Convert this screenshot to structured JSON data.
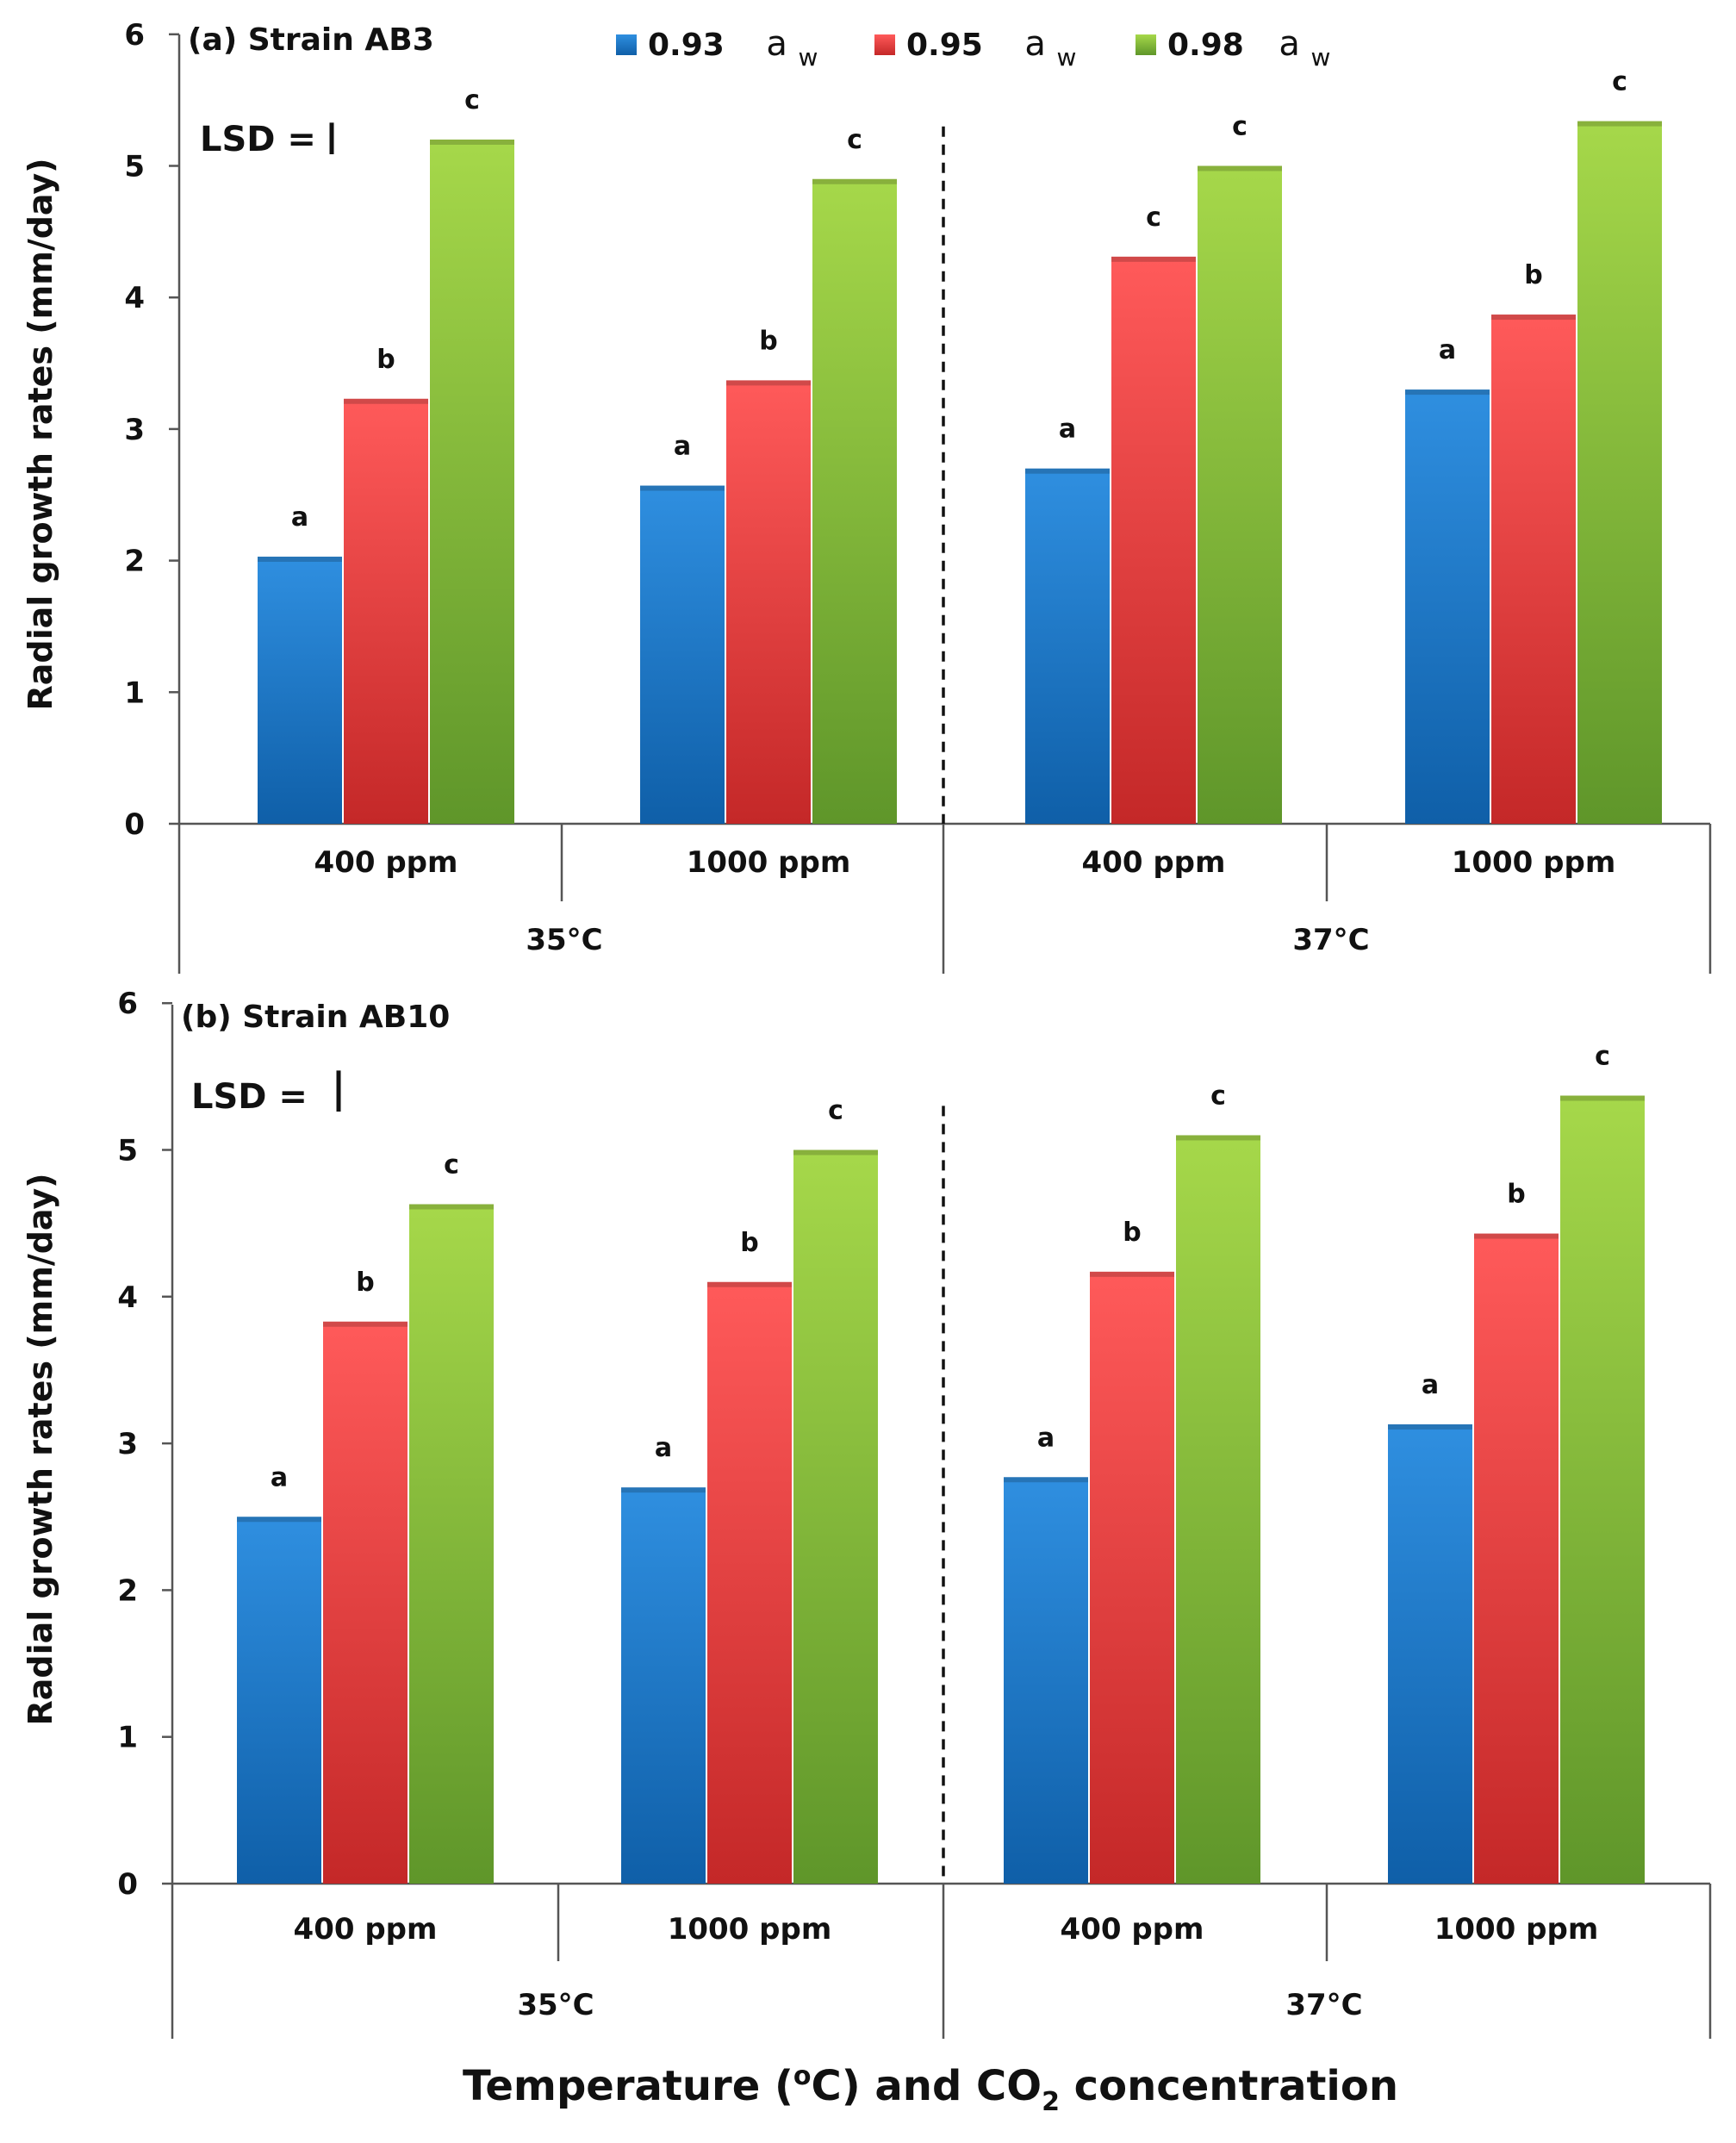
{
  "colors": {
    "series_0": [
      "#2f8fe0",
      "#0f5fa8"
    ],
    "series_1": [
      "#ff5a5a",
      "#c42828"
    ],
    "series_2": [
      "#a6d84a",
      "#5f962a"
    ],
    "axis": "#555555",
    "text": "#111111"
  },
  "legend": {
    "items": [
      {
        "value": "0.93",
        "symbol": "a",
        "subscript": "w"
      },
      {
        "value": "0.95",
        "symbol": "a",
        "subscript": "w"
      },
      {
        "value": "0.98",
        "symbol": "a",
        "subscript": "w"
      }
    ]
  },
  "xlabel": {
    "part1": "Temperature (",
    "sup": "o",
    "part2": "C) and CO",
    "sub": "2",
    "part3": " concentration"
  },
  "chart_data": [
    {
      "type": "bar",
      "title": "(a) Strain AB3",
      "lsd_label": "LSD =",
      "lsd_value_length": 0.24,
      "ylabel": "Radial growth rates (mm/day)",
      "ylim": [
        0,
        6
      ],
      "yticks": [
        "0",
        "1",
        "2",
        "3",
        "4",
        "5",
        "6"
      ],
      "categories": [
        "400 ppm",
        "1000 ppm",
        "400 ppm",
        "1000 ppm"
      ],
      "groups": [
        "35°C",
        "37°C"
      ],
      "series": [
        {
          "name": "0.93 aw",
          "values": [
            2.03,
            2.57,
            2.7,
            3.3
          ],
          "letters": [
            "a",
            "a",
            "a",
            "a"
          ]
        },
        {
          "name": "0.95 aw",
          "values": [
            3.23,
            3.37,
            4.31,
            3.87
          ],
          "letters": [
            "b",
            "b",
            "c",
            "b"
          ]
        },
        {
          "name": "0.98 aw",
          "values": [
            5.2,
            4.9,
            5.0,
            5.34
          ],
          "letters": [
            "c",
            "c",
            "c",
            "c"
          ]
        }
      ]
    },
    {
      "type": "bar",
      "title": "(b) Strain AB10",
      "lsd_label": "LSD =",
      "lsd_value_length": 0.28,
      "ylabel": "Radial growth rates (mm/day)",
      "ylim": [
        0,
        6
      ],
      "yticks": [
        "0",
        "1",
        "2",
        "3",
        "4",
        "5",
        "6"
      ],
      "categories": [
        "400 ppm",
        "1000 ppm",
        "400 ppm",
        "1000 ppm"
      ],
      "groups": [
        "35°C",
        "37°C"
      ],
      "series": [
        {
          "name": "0.93 aw",
          "values": [
            2.5,
            2.7,
            2.77,
            3.13
          ],
          "letters": [
            "a",
            "a",
            "a",
            "a"
          ]
        },
        {
          "name": "0.95 aw",
          "values": [
            3.83,
            4.1,
            4.17,
            4.43
          ],
          "letters": [
            "b",
            "b",
            "b",
            "b"
          ]
        },
        {
          "name": "0.98 aw",
          "values": [
            4.63,
            5.0,
            5.1,
            5.37
          ],
          "letters": [
            "c",
            "c",
            "c",
            "c"
          ]
        }
      ]
    }
  ]
}
